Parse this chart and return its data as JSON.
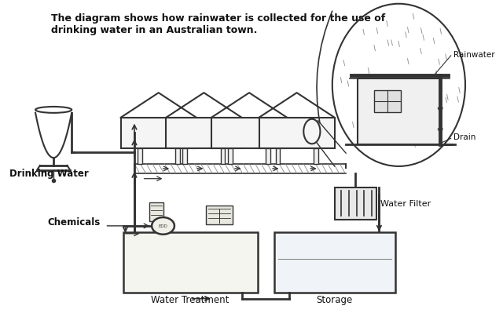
{
  "title_line1": "The diagram shows how rainwater is collected for the use of",
  "title_line2": "drinking water in an Australian town.",
  "bg_color": "#ffffff",
  "gray": "#333333",
  "lightgray": "#888888",
  "labels": {
    "rainwater": "Rainwater",
    "drain": "Drain",
    "drinking_water": "Drinking Water",
    "water_filter": "Water Filter",
    "chemicals": "Chemicals",
    "water_treatment": "Water Treatment",
    "storage": "Storage"
  }
}
